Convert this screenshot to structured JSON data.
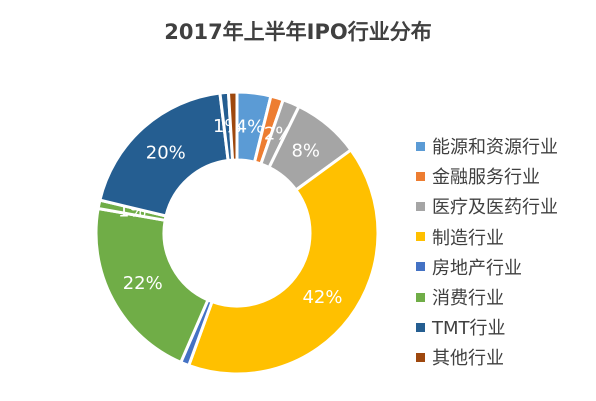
{
  "chart_data": {
    "type": "pie",
    "title": "2017年上半年IPO行业分布",
    "series": [
      {
        "name": "能源和资源行业",
        "value": 4,
        "label": "4%",
        "color": "#5B9BD5"
      },
      {
        "name": "金融服务行业",
        "value": 1.5,
        "label": "",
        "color": "#ED7D31"
      },
      {
        "name": "医疗及医药行业",
        "value": 2,
        "label": "2%",
        "color": "#A5A5A5"
      },
      {
        "name": "",
        "value": 8,
        "label": "8%",
        "color": "#A5A5A5"
      },
      {
        "name": "制造行业",
        "value": 42,
        "label": "42%",
        "color": "#FFC000"
      },
      {
        "name": "房地产行业",
        "value": 1,
        "label": "",
        "color": "#4472C4"
      },
      {
        "name": "消费行业",
        "value": 22,
        "label": "22%",
        "color": "#70AD47"
      },
      {
        "name": "",
        "value": 1,
        "label": "1%",
        "color": "#70AD47"
      },
      {
        "name": "TMT行业",
        "value": 20,
        "label": "20%",
        "color": "#255E91"
      },
      {
        "name": "",
        "value": 1,
        "label": "1%",
        "color": "#255E91"
      },
      {
        "name": "其他行业",
        "value": 1,
        "label": "",
        "color": "#9E480E"
      }
    ],
    "legend": [
      {
        "name": "能源和资源行业",
        "color": "#5B9BD5"
      },
      {
        "name": "金融服务行业",
        "color": "#ED7D31"
      },
      {
        "name": "医疗及医药行业",
        "color": "#A5A5A5"
      },
      {
        "name": "制造行业",
        "color": "#FFC000"
      },
      {
        "name": "房地产行业",
        "color": "#4472C4"
      },
      {
        "name": "消费行业",
        "color": "#70AD47"
      },
      {
        "name": "TMT行业",
        "color": "#255E91"
      },
      {
        "name": "其他行业",
        "color": "#9E480E"
      }
    ],
    "legend_position": "right"
  }
}
